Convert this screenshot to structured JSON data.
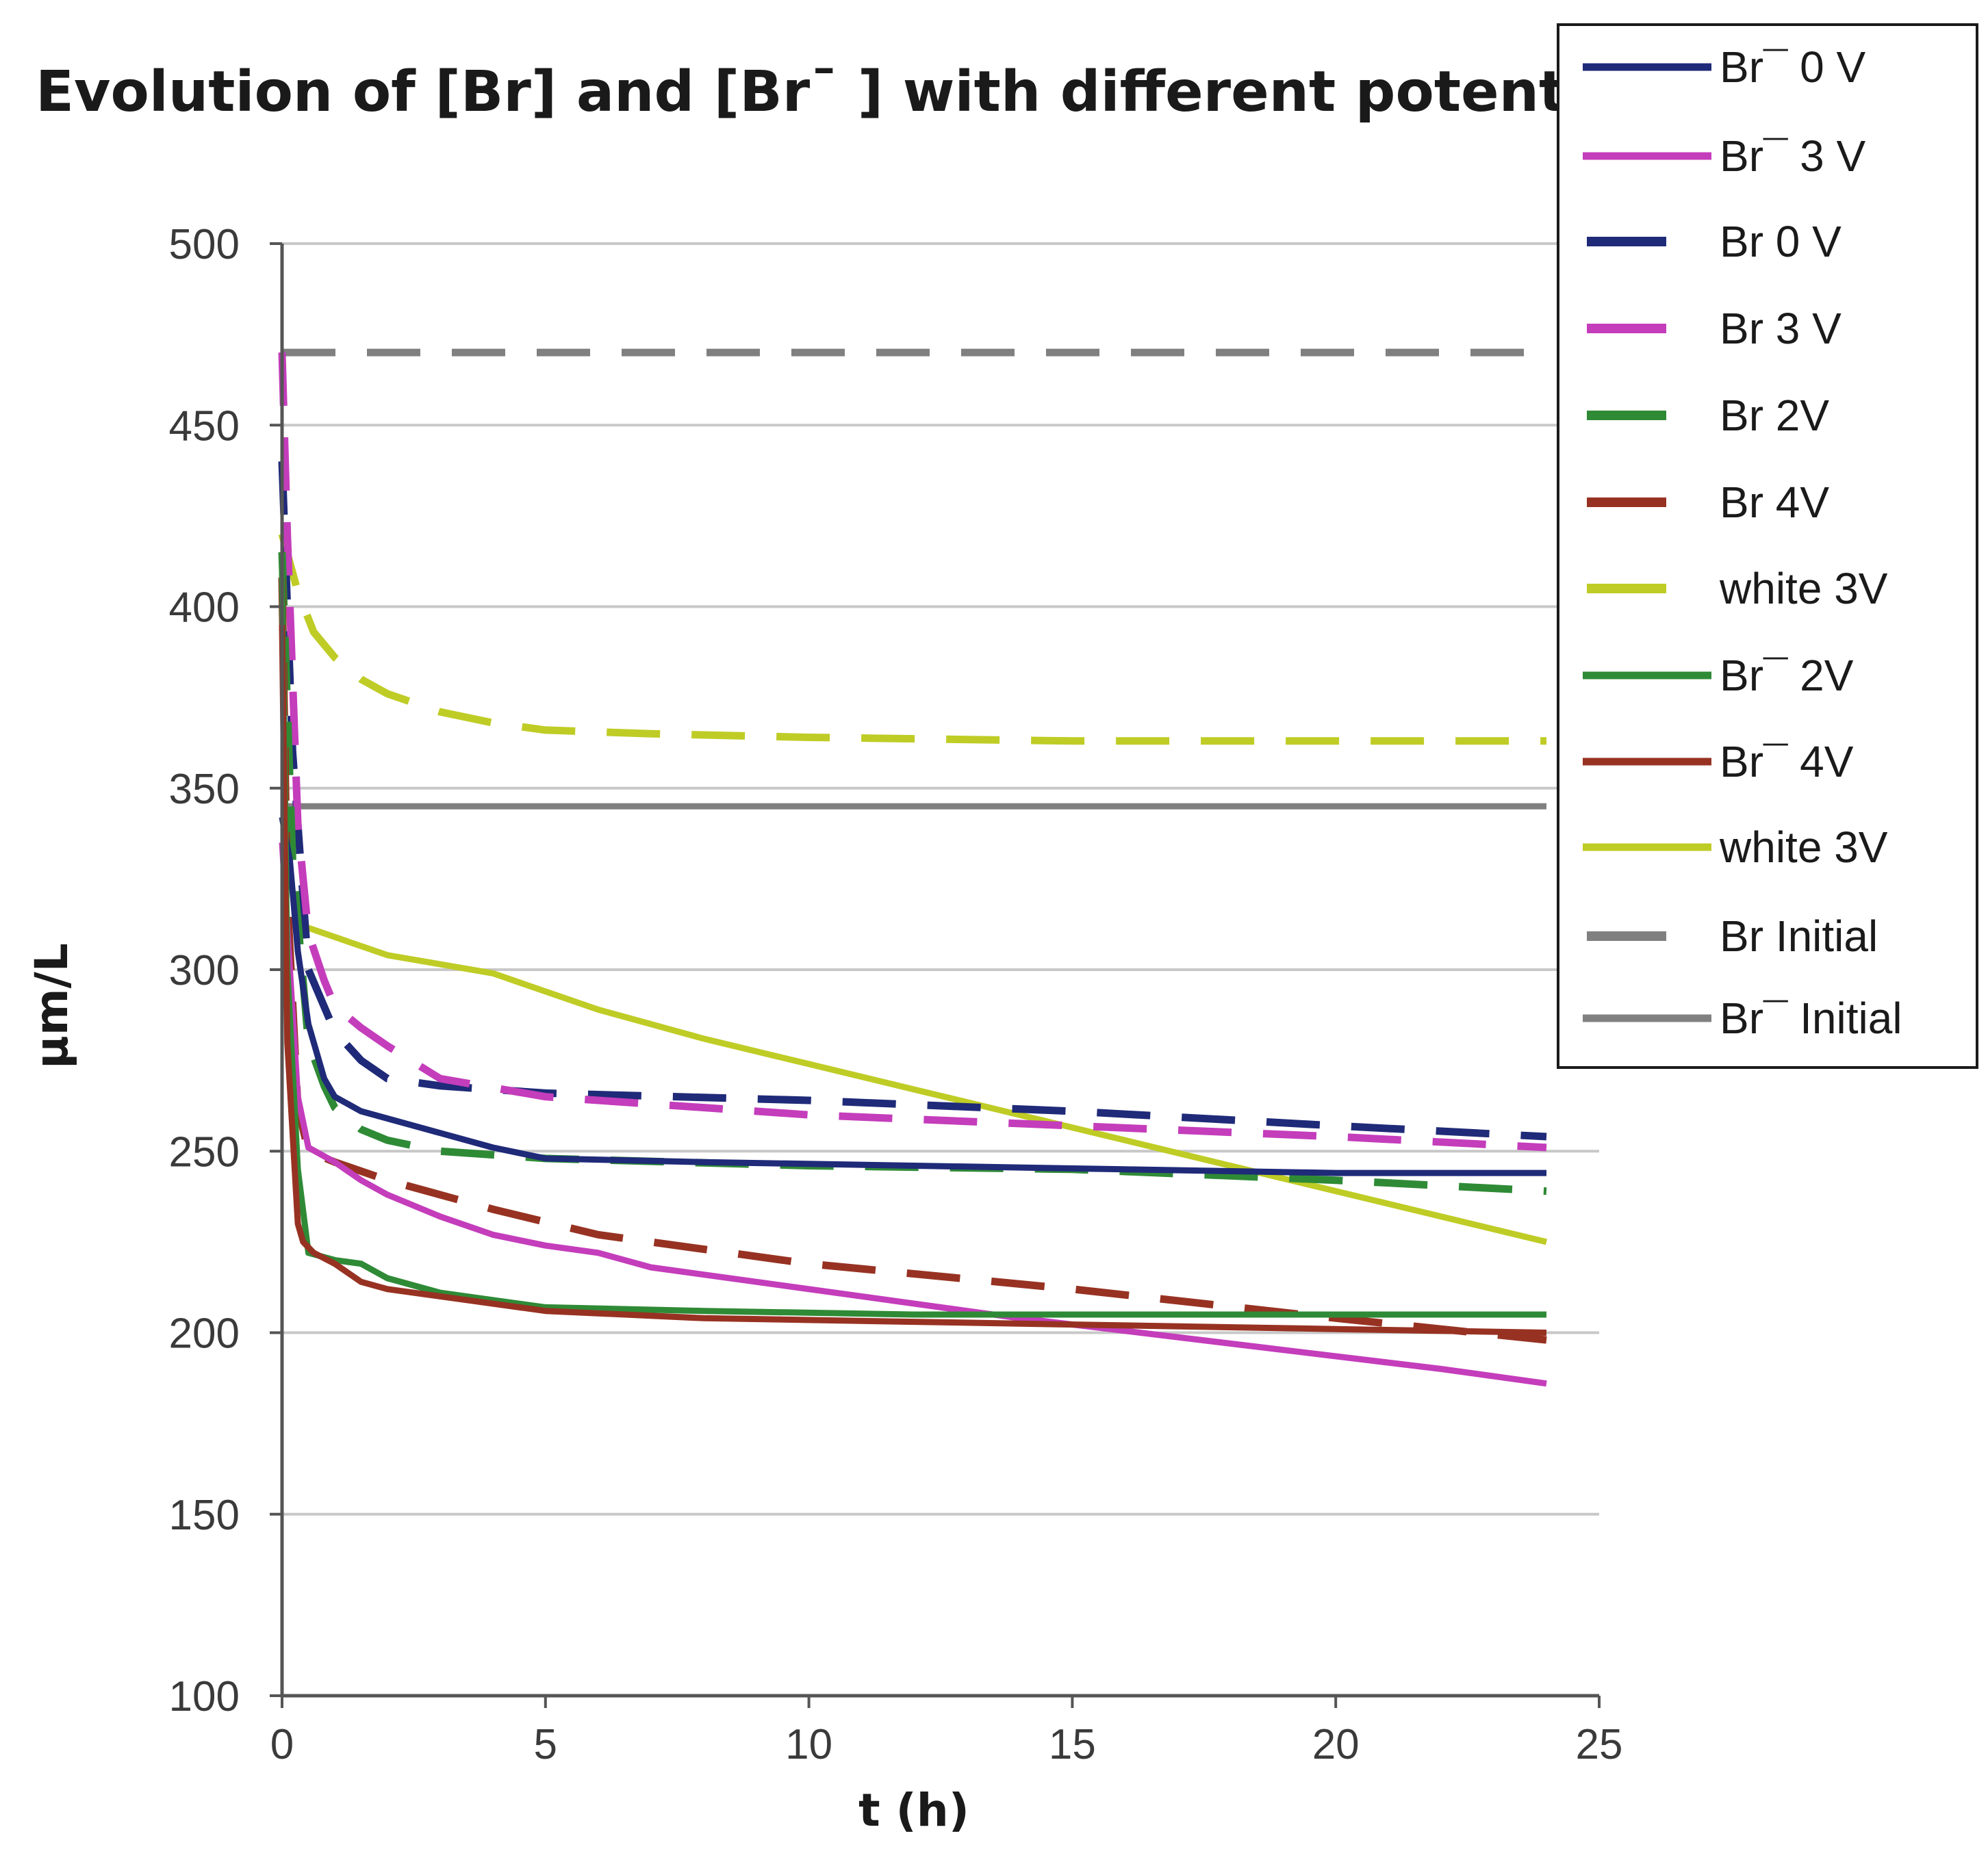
{
  "colors": {
    "navy": "#1f2a78",
    "magenta": "#c43dbb",
    "green": "#2f8a36",
    "brown": "#973222",
    "yellow": "#bfcc25",
    "gray": "#808080",
    "grid": "#c8c8c8",
    "axis": "#555555"
  },
  "chart_data": {
    "type": "line",
    "title": "Evolution of [Br] and [Br¯ ] with different potential",
    "xlabel": "t (h)",
    "ylabel": "µm/L",
    "xlim": [
      0,
      25
    ],
    "ylim": [
      100,
      500
    ],
    "xticks": [
      "0",
      "5",
      "10",
      "15",
      "20",
      "25"
    ],
    "yticks": [
      "100",
      "150",
      "200",
      "250",
      "300",
      "350",
      "400",
      "450",
      "500"
    ],
    "grid": "horizontal",
    "legend_position": "top-right",
    "series": [
      {
        "name": "Br¯ 0 V",
        "color_key": "navy",
        "dash": "solid",
        "x": [
          0,
          0.15,
          0.3,
          0.5,
          0.8,
          1,
          1.5,
          2,
          3,
          4,
          5,
          8,
          12,
          16,
          20,
          24
        ],
        "y": [
          342,
          330,
          305,
          285,
          270,
          265,
          261,
          259,
          255,
          251,
          248,
          247,
          246,
          245,
          244,
          244
        ]
      },
      {
        "name": "Br¯ 3 V",
        "color_key": "magenta",
        "dash": "solid",
        "x": [
          0,
          0.15,
          0.3,
          0.5,
          1,
          1.5,
          2,
          3,
          4,
          5,
          6,
          7,
          10,
          14,
          18,
          22,
          24
        ],
        "y": [
          335,
          300,
          265,
          251,
          247,
          242,
          238,
          232,
          227,
          224,
          222,
          218,
          212,
          204,
          197,
          190,
          186
        ]
      },
      {
        "name": "Br 0 V",
        "color_key": "navy",
        "dash": "dash",
        "x": [
          0,
          0.2,
          0.5,
          1,
          1.5,
          2,
          3,
          5,
          10,
          15,
          20,
          24
        ],
        "y": [
          440,
          360,
          300,
          283,
          275,
          270,
          268,
          266,
          264,
          261,
          257,
          254
        ]
      },
      {
        "name": "Br 3 V",
        "color_key": "magenta",
        "dash": "dash",
        "x": [
          0,
          0.1,
          0.3,
          0.5,
          0.8,
          1,
          1.5,
          2,
          3,
          5,
          10,
          15,
          20,
          24
        ],
        "y": [
          470,
          420,
          340,
          310,
          297,
          290,
          284,
          279,
          270,
          265,
          260,
          257,
          254,
          251
        ]
      },
      {
        "name": "Br 2V",
        "color_key": "green",
        "dash": "dash",
        "x": [
          0,
          0.2,
          0.5,
          0.8,
          1,
          1.5,
          2,
          3,
          5,
          10,
          15,
          20,
          24
        ],
        "y": [
          415,
          330,
          280,
          268,
          262,
          256,
          253,
          250,
          248,
          246,
          245,
          242,
          239
        ]
      },
      {
        "name": "Br 4V",
        "color_key": "brown",
        "dash": "dash",
        "x": [
          0,
          0.1,
          0.3,
          0.5,
          1,
          2,
          4,
          6,
          10,
          15,
          20,
          24
        ],
        "y": [
          408,
          320,
          262,
          250,
          247,
          242,
          234,
          227,
          219,
          212,
          204,
          198
        ]
      },
      {
        "name": "white 3V",
        "color_key": "yellow",
        "dash": "dash",
        "x": [
          0,
          0.3,
          0.6,
          1,
          1.5,
          2,
          3,
          4,
          5,
          7,
          10,
          15,
          20,
          24
        ],
        "y": [
          420,
          404,
          393,
          386,
          380,
          376,
          371,
          368,
          366,
          365,
          364,
          363,
          363,
          363
        ]
      },
      {
        "name": "Br¯ 2V",
        "color_key": "green",
        "dash": "solid",
        "x": [
          0,
          0.1,
          0.3,
          0.5,
          1,
          1.5,
          2,
          3,
          4,
          5,
          8,
          12,
          16,
          20,
          24
        ],
        "y": [
          410,
          300,
          245,
          222,
          220,
          219,
          215,
          211,
          209,
          207,
          206,
          205,
          205,
          205,
          205
        ]
      },
      {
        "name": "Br¯ 4V",
        "color_key": "brown",
        "dash": "solid",
        "x": [
          0,
          0.1,
          0.3,
          0.4,
          0.6,
          1,
          1.5,
          2,
          3,
          5,
          8,
          12,
          16,
          20,
          24
        ],
        "y": [
          395,
          280,
          230,
          225,
          222,
          219,
          214,
          212,
          210,
          206,
          204,
          203,
          202,
          201,
          200
        ]
      },
      {
        "name": "white 3V",
        "color_key": "yellow",
        "dash": "solid",
        "x": [
          0,
          1,
          2,
          4,
          6,
          8,
          10,
          12,
          14,
          16,
          18,
          20,
          22,
          24
        ],
        "y": [
          314,
          309,
          304,
          299,
          289,
          281,
          274,
          267,
          260,
          253,
          246,
          239,
          232,
          225
        ]
      },
      {
        "name": "Br Initial",
        "color_key": "gray",
        "dash": "dash",
        "x": [
          0,
          24
        ],
        "y": [
          470,
          470
        ]
      },
      {
        "name": "Br¯ Initial",
        "color_key": "gray",
        "dash": "solid",
        "x": [
          0,
          24
        ],
        "y": [
          345,
          345
        ]
      }
    ]
  }
}
